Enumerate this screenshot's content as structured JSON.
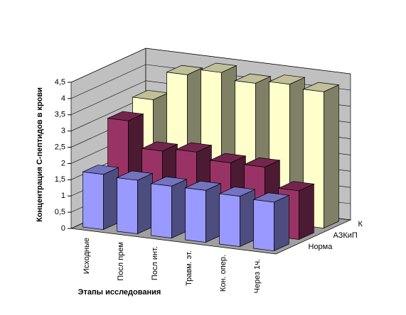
{
  "chart_data": {
    "type": "bar3d",
    "x_label": "Этапы исследования",
    "y_label": "Концентрация С-пептидов в крови",
    "categories": [
      "Исходные",
      "Посл прем",
      "Посл инт.",
      "Травм. эт.",
      "Кон. опер.",
      "Через 1ч."
    ],
    "series": [
      {
        "name": "Норма",
        "color": "#9999ff",
        "values": [
          1.7,
          1.65,
          1.6,
          1.6,
          1.55,
          1.5
        ]
      },
      {
        "name": "АЗКиП",
        "color": "#993366",
        "values": [
          3.0,
          2.2,
          2.3,
          2.1,
          2.1,
          1.5
        ]
      },
      {
        "name": "К",
        "color": "#ffffcc",
        "values": [
          3.3,
          4.2,
          4.4,
          4.2,
          4.3,
          4.2
        ]
      }
    ],
    "ylim": [
      0,
      4.5
    ],
    "yticks": [
      0,
      {
        "value": 0.5,
        "label": "0,5"
      },
      1,
      {
        "value": 1.5,
        "label": "1,5"
      },
      2,
      {
        "value": 2.5,
        "label": "2,5"
      },
      3,
      {
        "value": 3.5,
        "label": "3,5"
      },
      4,
      {
        "value": 4.5,
        "label": "4,5"
      }
    ],
    "grid": true
  }
}
